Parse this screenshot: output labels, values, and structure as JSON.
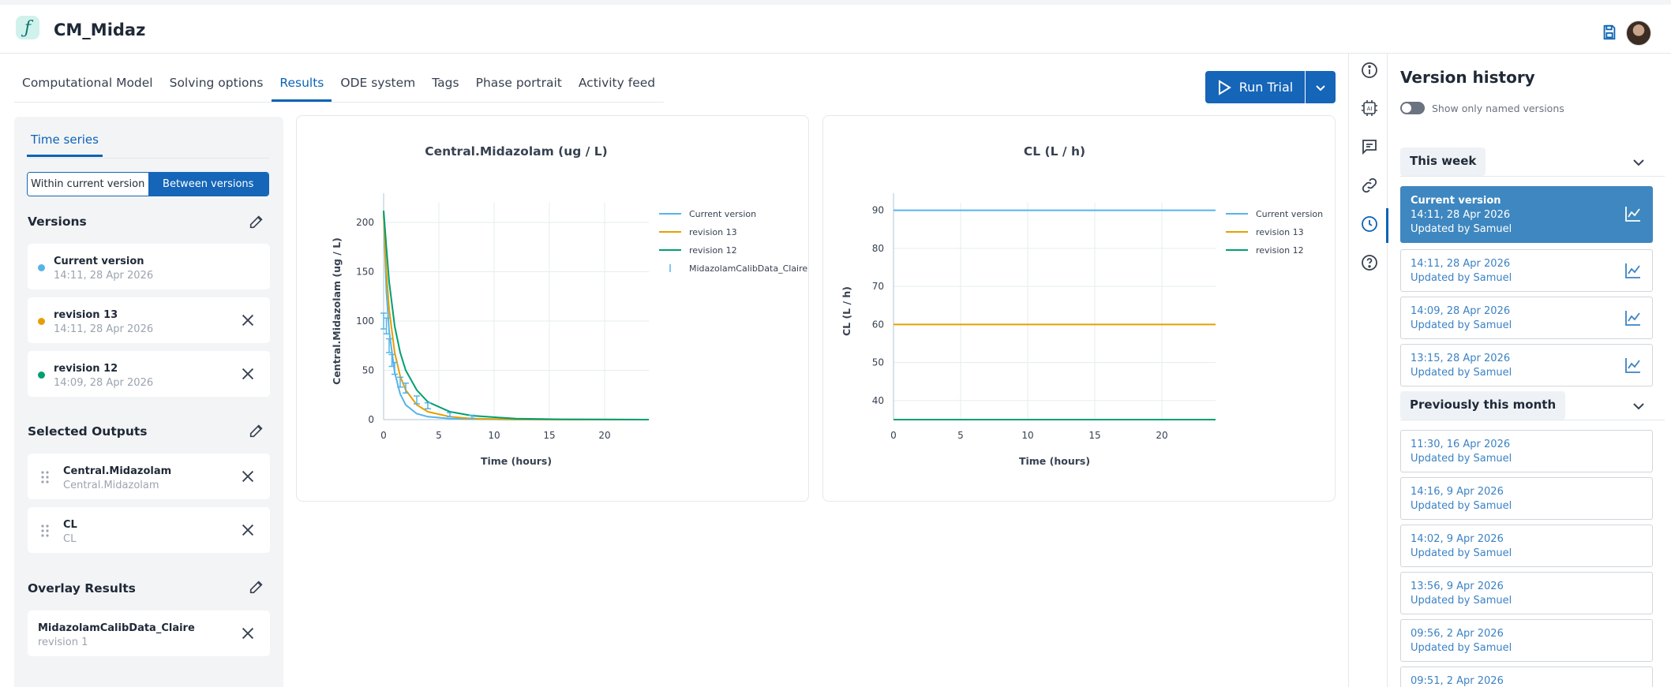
{
  "app": {
    "title": "CM_Midaz"
  },
  "tabs": [
    {
      "label": "Computational Model"
    },
    {
      "label": "Solving options"
    },
    {
      "label": "Results"
    },
    {
      "label": "ODE system"
    },
    {
      "label": "Tags"
    },
    {
      "label": "Phase portrait"
    },
    {
      "label": "Activity feed"
    }
  ],
  "run": {
    "label": "Run Trial"
  },
  "left": {
    "subtab": "Time series",
    "segment": {
      "option1": "Within current version",
      "option2": "Between versions"
    },
    "versions_title": "Versions",
    "versions": [
      {
        "name": "Current version",
        "date": "14:11, 28 Apr 2026",
        "color": "#56b4e9"
      },
      {
        "name": "revision 13",
        "date": "14:11, 28 Apr 2026",
        "color": "#e69f00"
      },
      {
        "name": "revision 12",
        "date": "14:09, 28 Apr 2026",
        "color": "#009e73"
      }
    ],
    "outputs_title": "Selected Outputs",
    "outputs": [
      {
        "name": "Central.Midazolam",
        "sub": "Central.Midazolam"
      },
      {
        "name": "CL",
        "sub": "CL"
      }
    ],
    "overlay_title": "Overlay Results",
    "overlays": [
      {
        "name": "MidazolamCalibData_Claire",
        "sub": "revision 1"
      }
    ]
  },
  "chart_data": [
    {
      "type": "line",
      "title": "Central.Midazolam (ug / L)",
      "xlabel": "Time (hours)",
      "ylabel": "Central.Midazolam (ug / L)",
      "xlim": [
        0,
        24
      ],
      "ylim": [
        0,
        220
      ],
      "xticks": [
        0,
        5,
        10,
        15,
        20
      ],
      "yticks": [
        0,
        50,
        100,
        150,
        200
      ],
      "legend": "top-right",
      "series": [
        {
          "name": "Current version",
          "color": "#56b4e9",
          "x": [
            0,
            0.25,
            0.5,
            1,
            1.5,
            2,
            3,
            4,
            6,
            8,
            12,
            16,
            24
          ],
          "y": [
            210,
            130,
            90,
            48,
            26,
            15,
            6,
            3,
            1,
            0.5,
            0,
            0,
            0
          ]
        },
        {
          "name": "revision 13",
          "color": "#e69f00",
          "x": [
            0,
            0.25,
            0.5,
            1,
            1.5,
            2,
            3,
            4,
            6,
            8,
            12,
            16,
            24
          ],
          "y": [
            210,
            150,
            112,
            68,
            44,
            30,
            15,
            8,
            3,
            1,
            0.3,
            0,
            0
          ]
        },
        {
          "name": "revision 12",
          "color": "#009e73",
          "x": [
            0,
            0.25,
            0.5,
            1,
            1.5,
            2,
            3,
            4,
            6,
            8,
            12,
            16,
            24
          ],
          "y": [
            212,
            175,
            140,
            95,
            68,
            50,
            30,
            18,
            8,
            4,
            1,
            0.3,
            0
          ]
        }
      ],
      "data_series": {
        "name": "MidazolamCalibData_Claire",
        "color": "#56b4e9",
        "x": [
          0,
          0.25,
          0.5,
          0.75,
          1,
          1.5,
          2,
          3,
          4,
          6,
          8
        ],
        "y": [
          100,
          95,
          75,
          60,
          52,
          38,
          32,
          20,
          14,
          5,
          3
        ],
        "err": [
          8,
          8,
          7,
          6,
          6,
          5,
          5,
          4,
          3,
          2,
          1.5
        ]
      }
    },
    {
      "type": "line",
      "title": "CL (L / h)",
      "xlabel": "Time (hours)",
      "ylabel": "CL (L / h)",
      "xlim": [
        0,
        24
      ],
      "ylim": [
        35,
        92
      ],
      "xticks": [
        0,
        5,
        10,
        15,
        20
      ],
      "yticks": [
        40,
        50,
        60,
        70,
        80,
        90
      ],
      "legend": "top-right",
      "series": [
        {
          "name": "Current version",
          "color": "#56b4e9",
          "x": [
            0,
            24
          ],
          "y": [
            90,
            90
          ]
        },
        {
          "name": "revision 13",
          "color": "#e69f00",
          "x": [
            0,
            24
          ],
          "y": [
            60,
            60
          ]
        },
        {
          "name": "revision 12",
          "color": "#009e73",
          "x": [
            0,
            24
          ],
          "y": [
            35,
            35
          ]
        }
      ]
    }
  ],
  "version_history": {
    "title": "Version history",
    "toggle_label": "Show only named versions",
    "this_week": "This week",
    "previously": "Previously this month",
    "week_items": [
      {
        "name": "Current version",
        "date": "14:11, 28 Apr 2026",
        "by": "Updated by Samuel",
        "selected": true
      },
      {
        "date": "14:11, 28 Apr 2026",
        "by": "Updated by Samuel"
      },
      {
        "date": "14:09, 28 Apr 2026",
        "by": "Updated by Samuel"
      },
      {
        "date": "13:15, 28 Apr 2026",
        "by": "Updated by Samuel"
      }
    ],
    "month_items": [
      {
        "date": "11:30, 16 Apr 2026",
        "by": "Updated by Samuel"
      },
      {
        "date": "14:16, 9 Apr 2026",
        "by": "Updated by Samuel"
      },
      {
        "date": "14:02, 9 Apr 2026",
        "by": "Updated by Samuel"
      },
      {
        "date": "13:56, 9 Apr 2026",
        "by": "Updated by Samuel"
      },
      {
        "date": "09:56, 2 Apr 2026",
        "by": "Updated by Samuel"
      },
      {
        "date": "09:51, 2 Apr 2026",
        "by": ""
      }
    ]
  },
  "icons": {
    "logo": "function-icon",
    "save": "save-icon",
    "strip": [
      "info-icon",
      "ai-chip-icon",
      "comment-icon",
      "link-icon",
      "history-icon",
      "help-icon"
    ]
  }
}
